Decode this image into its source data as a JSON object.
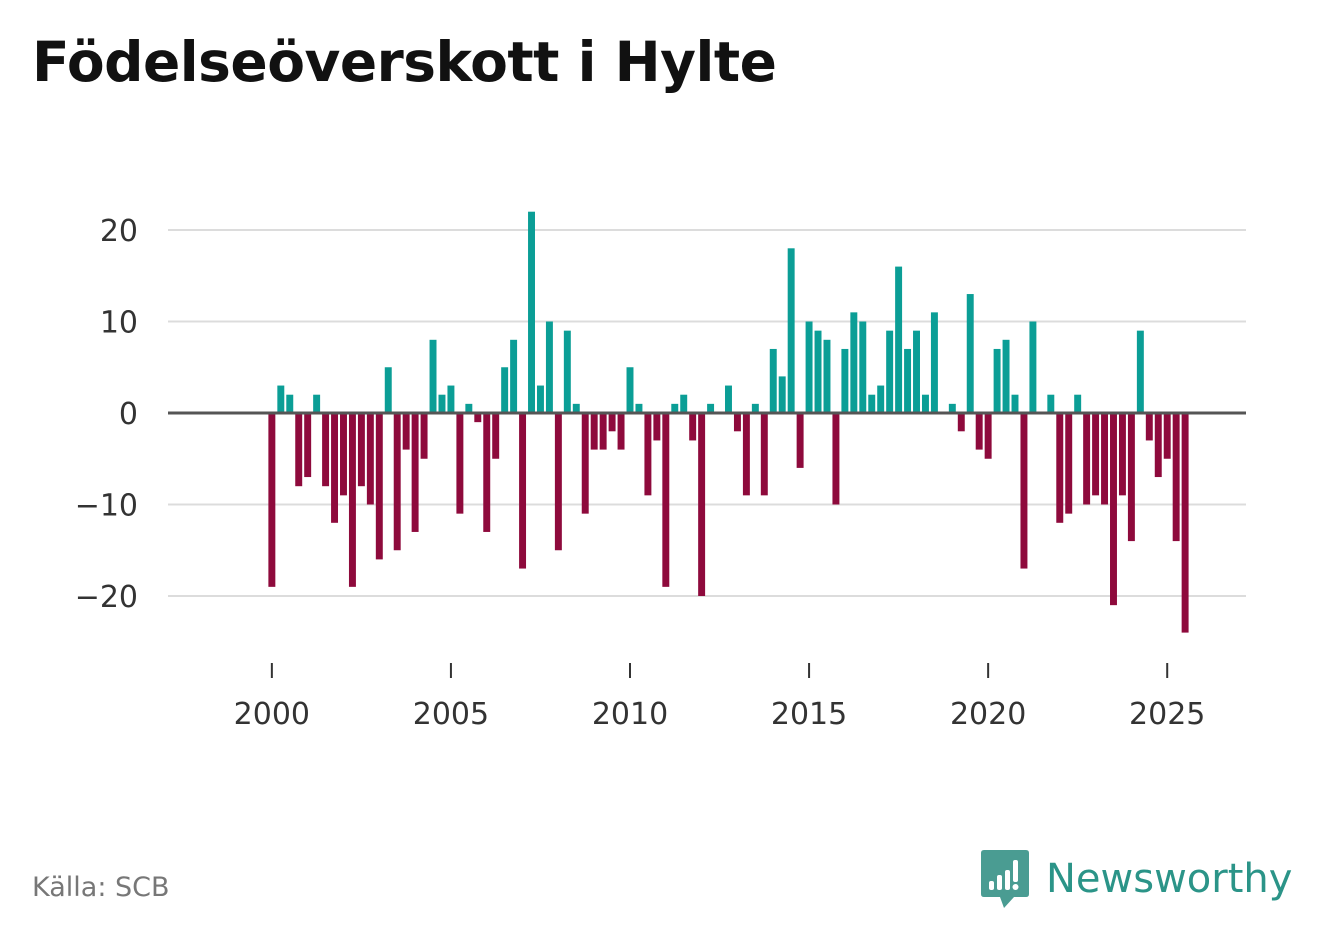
{
  "title": "Födelseöverskott i Hylte",
  "source": "Källa: SCB",
  "brand": {
    "name": "Newsworthy",
    "logo_icon": "bar-chart-speech-bubble-icon"
  },
  "colors": {
    "positive": "#0b9e96",
    "negative": "#8e0a3c",
    "grid": "#dcdcdc",
    "zero_line": "#555555",
    "brand": "#2b9488"
  },
  "chart_data": {
    "type": "bar",
    "title": "Födelseöverskott i Hylte",
    "xlabel": "",
    "ylabel": "",
    "x_start": 2000.0,
    "x_step": 0.25,
    "xlim": [
      1997.1,
      2027.2
    ],
    "ylim": [
      -27,
      27
    ],
    "yticks": [
      20,
      10,
      0,
      -10,
      -20
    ],
    "ytick_labels": [
      "20",
      "10",
      "0",
      "−10",
      "−20"
    ],
    "xticks": [
      2000,
      2005,
      2010,
      2015,
      2020,
      2025
    ],
    "xtick_labels": [
      "2000",
      "2005",
      "2010",
      "2015",
      "2020",
      "2025"
    ],
    "grid": true,
    "values": [
      -19,
      3,
      2,
      -8,
      -7,
      2,
      -8,
      -12,
      -9,
      -19,
      -8,
      -10,
      -16,
      5,
      -15,
      -4,
      -13,
      -5,
      8,
      2,
      3,
      -11,
      1,
      -1,
      -13,
      -5,
      5,
      8,
      -17,
      22,
      3,
      10,
      -15,
      9,
      1,
      -11,
      -4,
      -4,
      -2,
      -4,
      5,
      1,
      -9,
      -3,
      -19,
      1,
      2,
      -3,
      -20,
      1,
      0,
      3,
      -2,
      -9,
      1,
      -9,
      7,
      4,
      18,
      -6,
      10,
      9,
      8,
      -10,
      7,
      11,
      10,
      2,
      3,
      9,
      16,
      7,
      9,
      2,
      11,
      0,
      1,
      -2,
      13,
      -4,
      -5,
      7,
      8,
      2,
      -17,
      10,
      0,
      2,
      -12,
      -11,
      2,
      -10,
      -9,
      -10,
      -21,
      -9,
      -14,
      9,
      -3,
      -7,
      -5,
      -14,
      -24
    ]
  }
}
